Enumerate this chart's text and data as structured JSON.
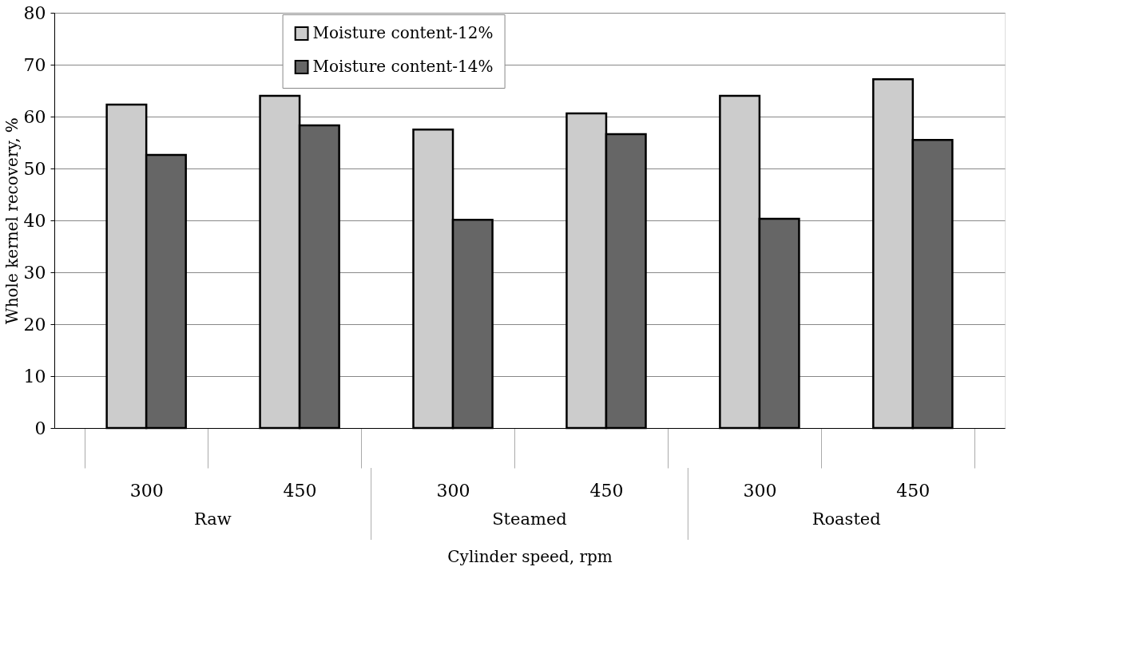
{
  "chart_data": {
    "type": "bar",
    "categories": [
      "300",
      "450",
      "300",
      "450",
      "300",
      "450"
    ],
    "series": [
      {
        "name": "Moisture content-12%",
        "color": "#cccccc",
        "values": [
          62.3,
          64.0,
          57.5,
          60.6,
          64.0,
          67.2
        ]
      },
      {
        "name": "Moisture content-14%",
        "color": "#666666",
        "values": [
          52.6,
          58.3,
          40.1,
          56.6,
          40.3,
          55.5
        ]
      }
    ],
    "xlabel": "Cylinder speed, rpm",
    "ylabel": "Whole kernel recovery, %",
    "annotations": [
      "Raw",
      "Steamed",
      "Roasted"
    ],
    "ylim": [
      0,
      80
    ],
    "yticks": [
      0,
      10,
      20,
      30,
      40,
      50,
      60,
      70,
      80
    ],
    "grid": "y",
    "legend": "top"
  }
}
